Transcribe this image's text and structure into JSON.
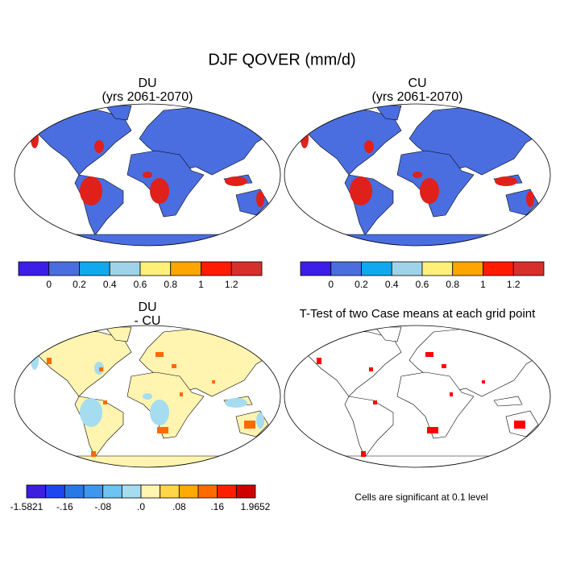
{
  "title": "DJF QOVER (mm/d)",
  "panels": [
    {
      "title": [
        "DU",
        "(yrs 2061-2070)"
      ],
      "colorbar": {
        "colors": [
          "#3c1ee8",
          "#4a6ee0",
          "#10a8ee",
          "#9fd3ea",
          "#fff07a",
          "#ffa500",
          "#ff1c00",
          "#d7302a"
        ],
        "labels": [
          "0",
          "0.2",
          "0.4",
          "0.6",
          "0.8",
          "1",
          "1.2"
        ]
      }
    },
    {
      "title": [
        "CU",
        "(yrs 2061-2070)"
      ],
      "colorbar": {
        "colors": [
          "#3c1ee8",
          "#4a6ee0",
          "#10a8ee",
          "#9fd3ea",
          "#fff07a",
          "#ffa500",
          "#ff1c00",
          "#d7302a"
        ],
        "labels": [
          "0",
          "0.2",
          "0.4",
          "0.6",
          "0.8",
          "1",
          "1.2"
        ]
      }
    },
    {
      "title": [
        "DU",
        "- CU"
      ],
      "colorbar": {
        "colors": [
          "#3c1ee0",
          "#1e46f0",
          "#2a78e6",
          "#3e96ee",
          "#6ec3f0",
          "#a6dcf0",
          "#fff4b0",
          "#ffd54a",
          "#ffaa00",
          "#ff6a00",
          "#ff1e00",
          "#d00000"
        ],
        "labels": [
          "-1.5821",
          "-.16",
          "-.08",
          ".0",
          ".08",
          ".16",
          "1.9652"
        ]
      }
    },
    {
      "title": [
        "T-Test of two Case means at each grid point"
      ],
      "note": "Cells are significant at 0.1 level"
    }
  ]
}
